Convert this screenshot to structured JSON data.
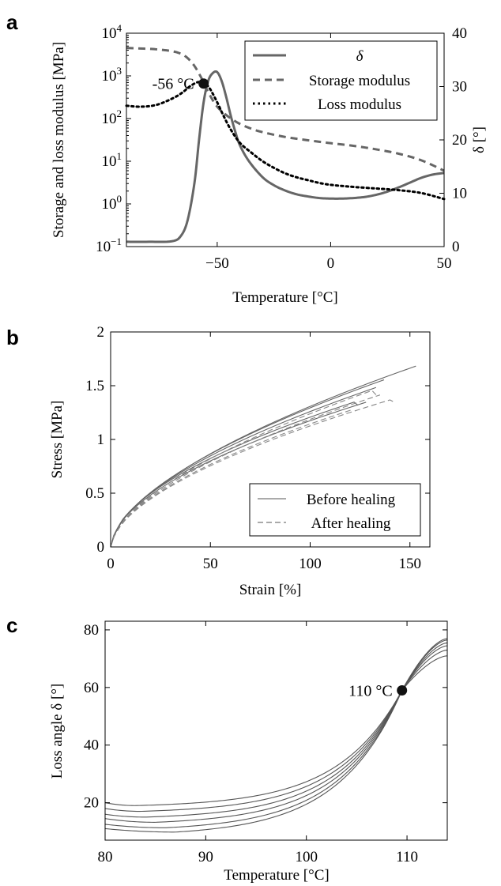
{
  "figure": {
    "panels": [
      "a",
      "b",
      "c"
    ]
  },
  "chart_data": [
    {
      "panel": "a",
      "type": "line",
      "xlabel": "Temperature [°C]",
      "ylabel": "Storage and loss modulus [MPa]",
      "ylabel_right": "δ [°]",
      "xlim": [
        -90,
        50
      ],
      "ylim": [
        0.1,
        10000
      ],
      "yscale": "log",
      "ylim_right": [
        0,
        40
      ],
      "xticks": [
        -50,
        0,
        50
      ],
      "yticks": [
        {
          "base": "10",
          "exp": "−1"
        },
        {
          "base": "10",
          "exp": "0"
        },
        {
          "base": "10",
          "exp": "1"
        },
        {
          "base": "10",
          "exp": "2"
        },
        {
          "base": "10",
          "exp": "3"
        },
        {
          "base": "10",
          "exp": "4"
        }
      ],
      "yticks_right": [
        0,
        10,
        20,
        30,
        40
      ],
      "legend_position": "top-right",
      "annotation": {
        "text": "-56 °C",
        "x": -56,
        "y": 660
      },
      "series": [
        {
          "name": "δ",
          "axis": "right",
          "style": "solid",
          "color": "#666666",
          "x": [
            -90,
            -80,
            -70,
            -66,
            -63,
            -60,
            -58,
            -56,
            -54,
            -52,
            -50,
            -48,
            -46,
            -44,
            -42,
            -40,
            -36,
            -30,
            -25,
            -20,
            -15,
            -10,
            -5,
            0,
            5,
            10,
            15,
            20,
            25,
            30,
            35,
            40,
            45,
            50
          ],
          "y": [
            0.9,
            0.9,
            1.0,
            2.0,
            5.0,
            12.0,
            20.0,
            27.0,
            31.0,
            32.5,
            32.7,
            31.0,
            28.0,
            24.5,
            21.5,
            19.0,
            16.0,
            13.0,
            11.5,
            10.5,
            9.8,
            9.4,
            9.1,
            9.0,
            9.0,
            9.1,
            9.3,
            9.7,
            10.3,
            11.1,
            12.0,
            12.9,
            13.5,
            13.8
          ]
        },
        {
          "name": "Storage modulus",
          "axis": "left",
          "style": "dashed",
          "color": "#666666",
          "x": [
            -90,
            -80,
            -75,
            -70,
            -66,
            -63,
            -60,
            -57,
            -54,
            -50,
            -45,
            -40,
            -35,
            -30,
            -20,
            -10,
            0,
            10,
            20,
            30,
            40,
            50
          ],
          "y": [
            4500,
            4300,
            4100,
            3800,
            3300,
            2600,
            1700,
            900,
            420,
            190,
            110,
            75,
            58,
            48,
            37,
            31,
            26.5,
            23,
            19,
            15,
            10.5,
            6
          ]
        },
        {
          "name": "Loss modulus",
          "axis": "left",
          "style": "dotted",
          "color": "#000000",
          "x": [
            -90,
            -85,
            -80,
            -76,
            -72,
            -68,
            -65,
            -62,
            -59,
            -57,
            -56,
            -55,
            -53,
            -50,
            -47,
            -44,
            -40,
            -35,
            -30,
            -25,
            -20,
            -15,
            -10,
            -5,
            0,
            10,
            20,
            30,
            40,
            50
          ],
          "y": [
            200,
            190,
            195,
            215,
            260,
            330,
            420,
            570,
            700,
            720,
            700,
            650,
            480,
            240,
            110,
            55,
            27,
            16,
            10,
            7,
            5.2,
            4.2,
            3.6,
            3.1,
            2.8,
            2.5,
            2.3,
            2.1,
            1.8,
            1.3
          ]
        }
      ]
    },
    {
      "panel": "b",
      "type": "line",
      "xlabel": "Strain [%]",
      "ylabel": "Stress [MPa]",
      "xlim": [
        0,
        160
      ],
      "ylim": [
        0,
        2
      ],
      "xticks": [
        0,
        50,
        100,
        150
      ],
      "yticks": [
        "0",
        "0.5",
        "1",
        "1.5",
        "2"
      ],
      "legend_position": "bottom-right",
      "legend": [
        {
          "label": "Before healing",
          "style": "solid"
        },
        {
          "label": "After healing",
          "style": "dashed"
        }
      ],
      "series": [
        {
          "style": "solid",
          "a": 0.0852,
          "p": 0.593,
          "x_end": 153
        },
        {
          "style": "solid",
          "a": 0.0883,
          "p": 0.583,
          "x_end": 137
        },
        {
          "style": "solid",
          "a": 0.09,
          "p": 0.573,
          "x_end": 133
        },
        {
          "style": "solid",
          "a": 0.092,
          "p": 0.553,
          "x_end": 128
        },
        {
          "style": "solid",
          "a": 0.095,
          "p": 0.552,
          "x_end": 122,
          "end_drop": 0.03
        },
        {
          "style": "dashed",
          "a": 0.08,
          "p": 0.595,
          "x_end": 131,
          "end_drop": 0.04
        },
        {
          "style": "dashed",
          "a": 0.081,
          "p": 0.583,
          "x_end": 135
        },
        {
          "style": "dashed",
          "a": 0.079,
          "p": 0.577,
          "x_end": 140,
          "end_drop": 0.02
        },
        {
          "style": "dashed",
          "a": 0.081,
          "p": 0.575,
          "x_end": 121
        }
      ]
    },
    {
      "panel": "c",
      "type": "line",
      "xlabel": "Temperature [°C]",
      "ylabel": "Loss angle δ [°]",
      "xlim": [
        80,
        114
      ],
      "ylim": [
        7,
        83
      ],
      "xticks": [
        80,
        90,
        100,
        110
      ],
      "yticks": [
        20,
        40,
        60,
        80
      ],
      "annotation": {
        "text": "110 °C",
        "x": 109.5,
        "y": 59
      },
      "series": [
        {
          "style": "solid",
          "y_start": 20.0,
          "y_min": 19.0,
          "x_min": 83.0,
          "y_end": 71.0
        },
        {
          "style": "solid",
          "y_start": 18.0,
          "y_min": 17.0,
          "x_min": 83.5,
          "y_end": 73.0
        },
        {
          "style": "solid",
          "y_start": 16.0,
          "y_min": 15.0,
          "x_min": 84.0,
          "y_end": 74.5
        },
        {
          "style": "solid",
          "y_start": 14.5,
          "y_min": 13.2,
          "x_min": 85.0,
          "y_end": 75.5
        },
        {
          "style": "solid",
          "y_start": 12.5,
          "y_min": 11.3,
          "x_min": 86.0,
          "y_end": 76.5
        },
        {
          "style": "solid",
          "y_start": 11.0,
          "y_min": 9.8,
          "x_min": 87.0,
          "y_end": 77.0
        }
      ]
    }
  ]
}
